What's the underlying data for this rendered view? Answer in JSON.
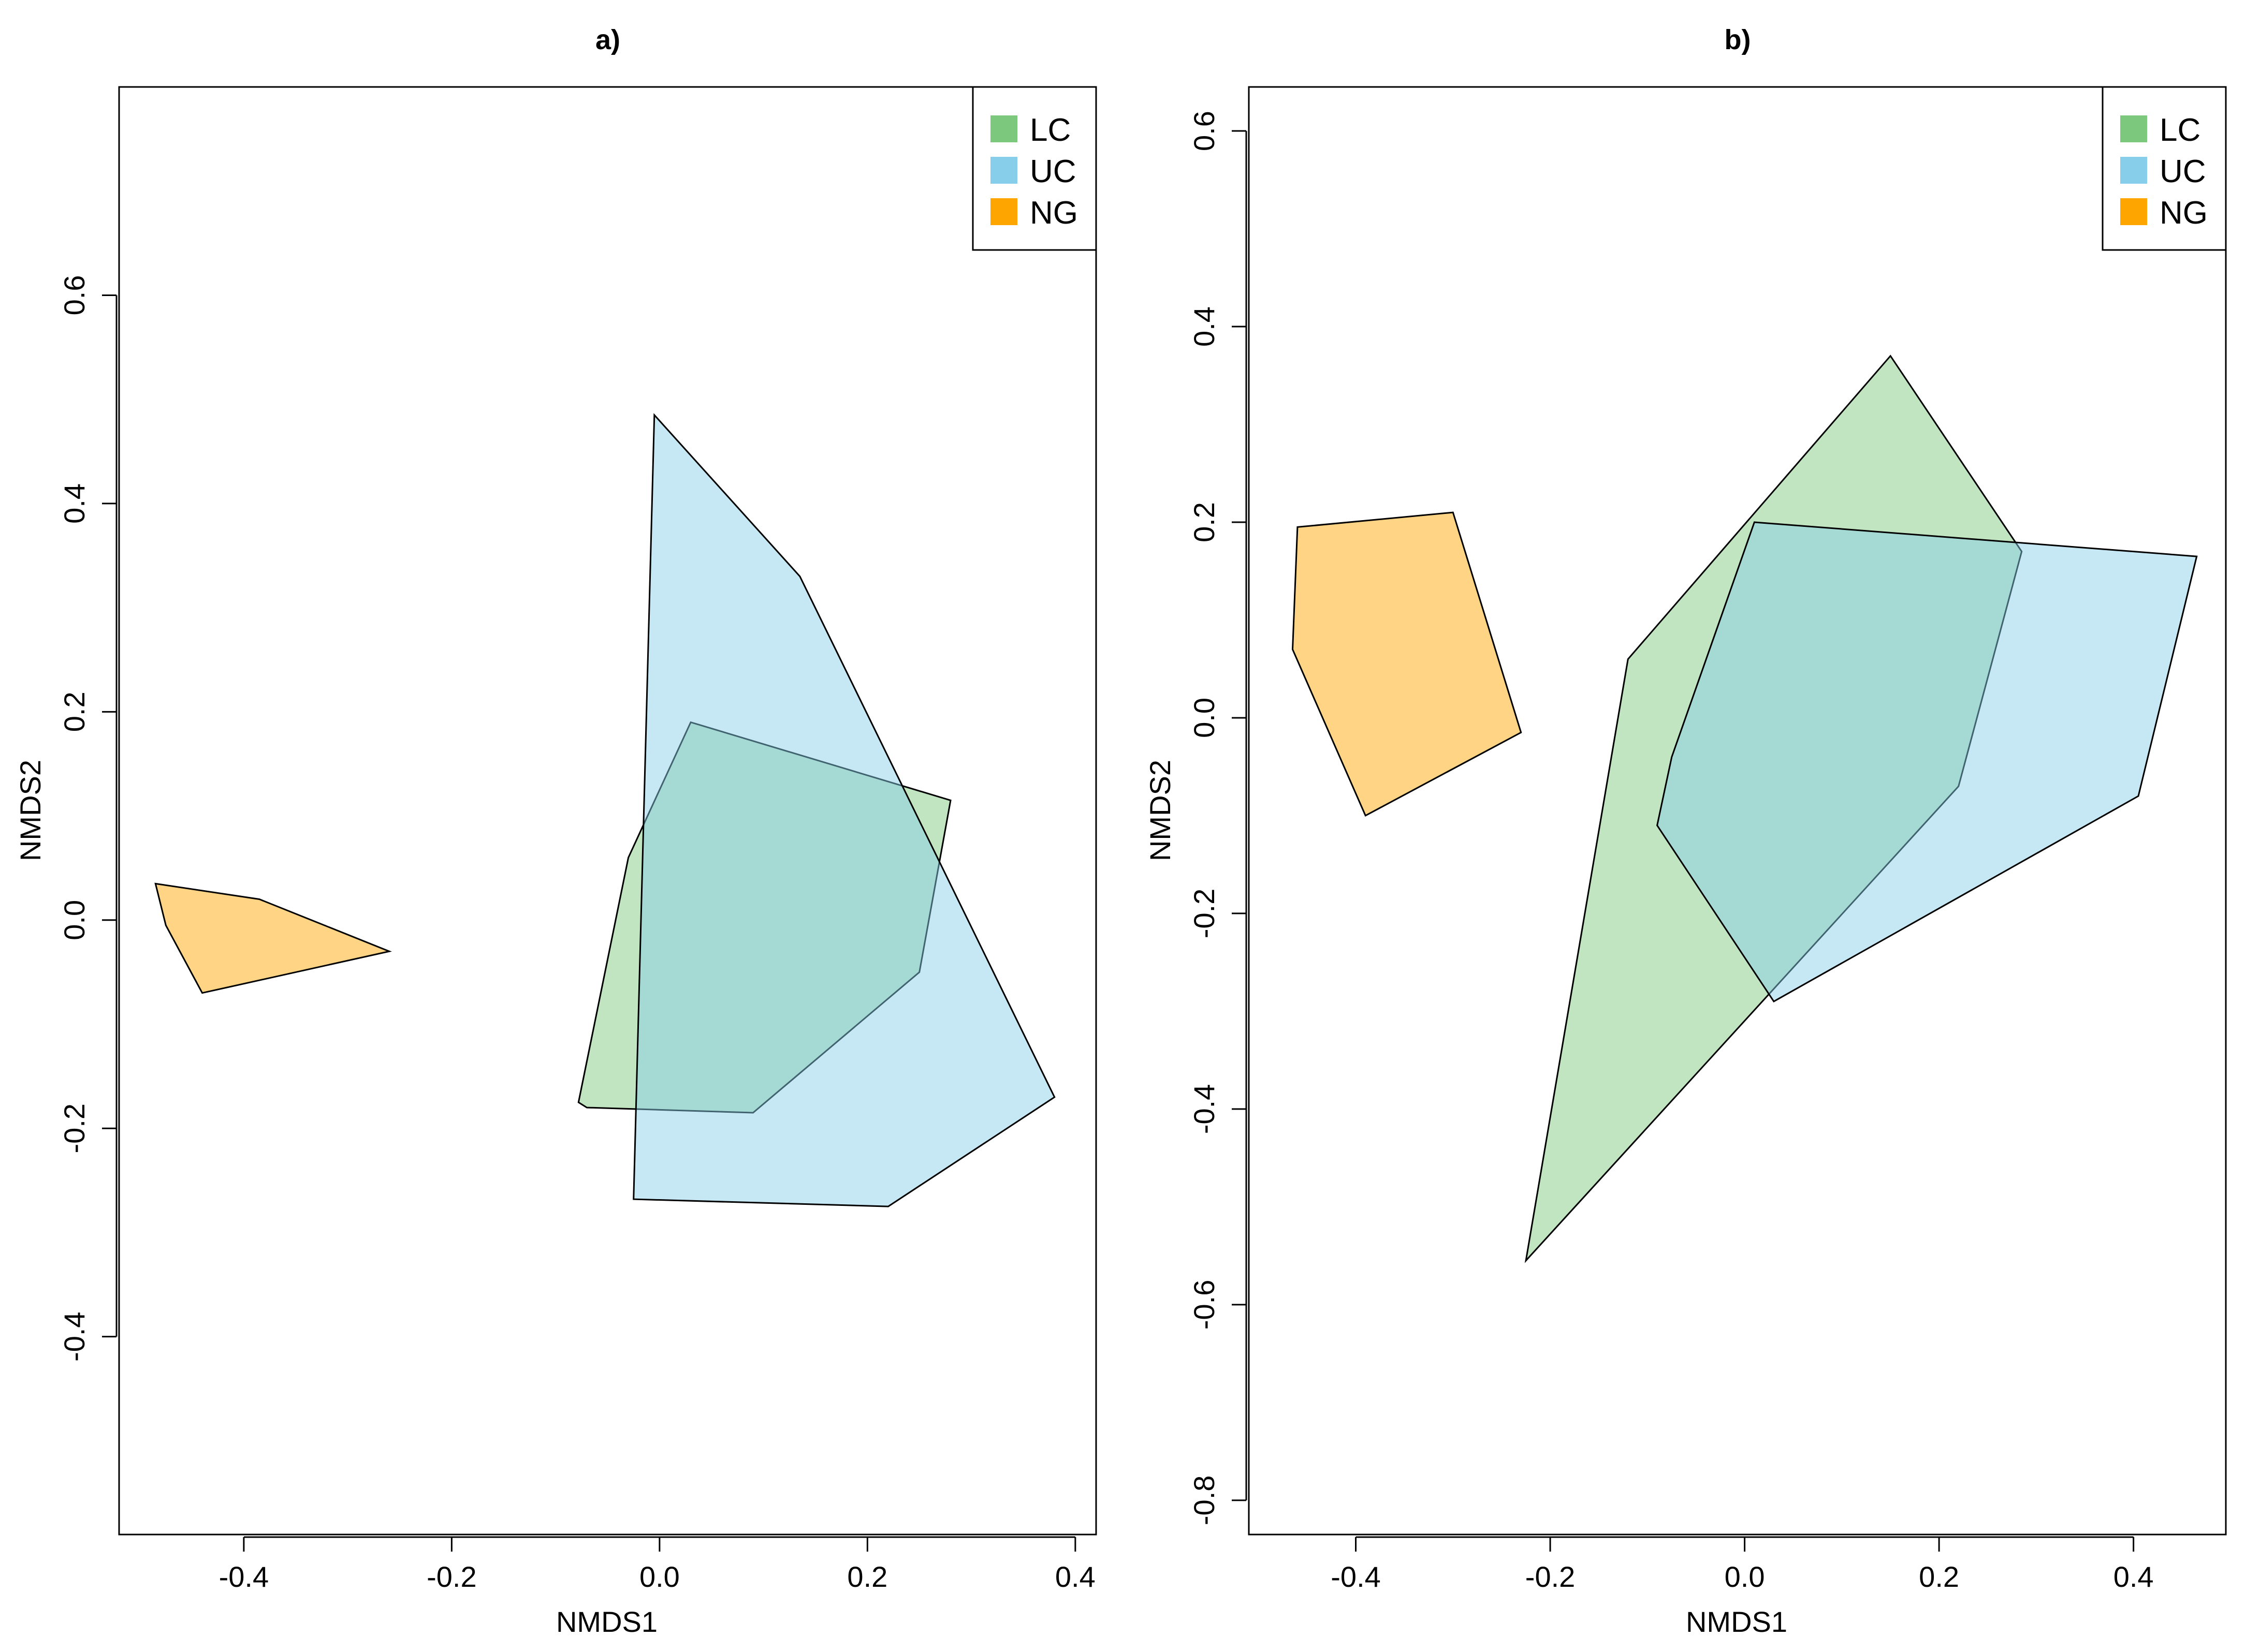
{
  "chart_data": [
    {
      "type": "polygon",
      "title": "a)",
      "xlabel": "NMDS1",
      "ylabel": "NMDS2",
      "xlim": [
        -0.52,
        0.42
      ],
      "ylim": [
        -0.59,
        0.8
      ],
      "xticks": [
        -0.4,
        -0.2,
        0.0,
        0.2,
        0.4
      ],
      "yticks": [
        -0.4,
        -0.2,
        0.0,
        0.2,
        0.4,
        0.6
      ],
      "xtick_labels": [
        "-0.4",
        "-0.2",
        "0.0",
        "0.2",
        "0.4"
      ],
      "ytick_labels": [
        "-0.4",
        "-0.2",
        "0.0",
        "0.2",
        "0.4",
        "0.6"
      ],
      "legend_position": "top-right",
      "series": [
        {
          "name": "LC",
          "color": "#7CC87C",
          "points": [
            [
              0.03,
              0.19
            ],
            [
              0.28,
              0.115
            ],
            [
              0.25,
              -0.05
            ],
            [
              0.09,
              -0.185
            ],
            [
              -0.07,
              -0.18
            ],
            [
              -0.078,
              -0.175
            ],
            [
              -0.03,
              0.06
            ]
          ]
        },
        {
          "name": "UC",
          "color": "#87CEEB",
          "points": [
            [
              -0.005,
              0.485
            ],
            [
              0.135,
              0.33
            ],
            [
              0.38,
              -0.17
            ],
            [
              0.22,
              -0.275
            ],
            [
              -0.025,
              -0.268
            ]
          ]
        },
        {
          "name": "NG",
          "color": "#FFA500",
          "points": [
            [
              -0.485,
              0.035
            ],
            [
              -0.385,
              0.02
            ],
            [
              -0.26,
              -0.03
            ],
            [
              -0.44,
              -0.07
            ],
            [
              -0.475,
              -0.005
            ]
          ]
        }
      ]
    },
    {
      "type": "polygon",
      "title": "b)",
      "xlabel": "NMDS1",
      "ylabel": "NMDS2",
      "xlim": [
        -0.51,
        0.495
      ],
      "ylim": [
        -0.835,
        0.645
      ],
      "xticks": [
        -0.4,
        -0.2,
        0.0,
        0.2,
        0.4
      ],
      "yticks": [
        -0.8,
        -0.6,
        -0.4,
        -0.2,
        0.0,
        0.2,
        0.4,
        0.6
      ],
      "xtick_labels": [
        "-0.4",
        "-0.2",
        "0.0",
        "0.2",
        "0.4"
      ],
      "ytick_labels": [
        "-0.8",
        "-0.6",
        "-0.4",
        "-0.2",
        "0.0",
        "0.2",
        "0.4",
        "0.6"
      ],
      "legend_position": "top-right",
      "series": [
        {
          "name": "LC",
          "color": "#7CC87C",
          "points": [
            [
              0.15,
              0.37
            ],
            [
              0.285,
              0.17
            ],
            [
              0.22,
              -0.07
            ],
            [
              -0.225,
              -0.555
            ],
            [
              -0.12,
              0.06
            ]
          ]
        },
        {
          "name": "UC",
          "color": "#87CEEB",
          "points": [
            [
              0.01,
              0.2
            ],
            [
              0.465,
              0.165
            ],
            [
              0.405,
              -0.08
            ],
            [
              0.03,
              -0.29
            ],
            [
              -0.09,
              -0.11
            ],
            [
              -0.075,
              -0.04
            ]
          ]
        },
        {
          "name": "NG",
          "color": "#FFA500",
          "points": [
            [
              -0.46,
              0.195
            ],
            [
              -0.3,
              0.21
            ],
            [
              -0.23,
              -0.015
            ],
            [
              -0.39,
              -0.1
            ],
            [
              -0.465,
              0.07
            ]
          ]
        }
      ]
    }
  ]
}
